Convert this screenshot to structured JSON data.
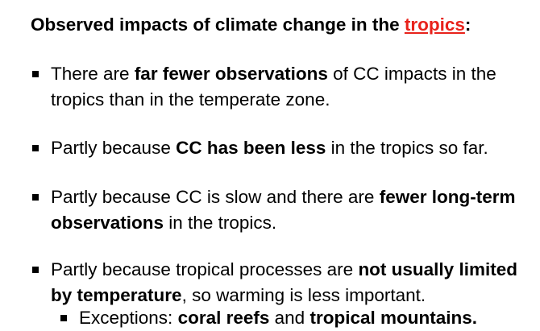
{
  "title": {
    "text": "Observed impacts of climate change in the ",
    "accent": "tropics",
    "suffix": ":",
    "accent_color": "#e8221b"
  },
  "bullets": [
    {
      "t1": "There are ",
      "b1": "far fewer observations",
      "t2": " of CC impacts in the tropics than in the temperate zone."
    },
    {
      "t1": "Partly because ",
      "b1": "CC has been less",
      "t2": " in the tropics so far."
    },
    {
      "t1": "Partly because CC is slow and there are ",
      "b1": "fewer long-term observations",
      "t2": " in the tropics."
    },
    {
      "t1": "Partly because tropical processes are ",
      "b1": "not usually limited by temperature",
      "t2": ", so warming is less important."
    }
  ],
  "sub_bullet": {
    "t1": "Exceptions: ",
    "b1": "coral reefs",
    "t2": " and ",
    "b2": "tropical mountains."
  }
}
